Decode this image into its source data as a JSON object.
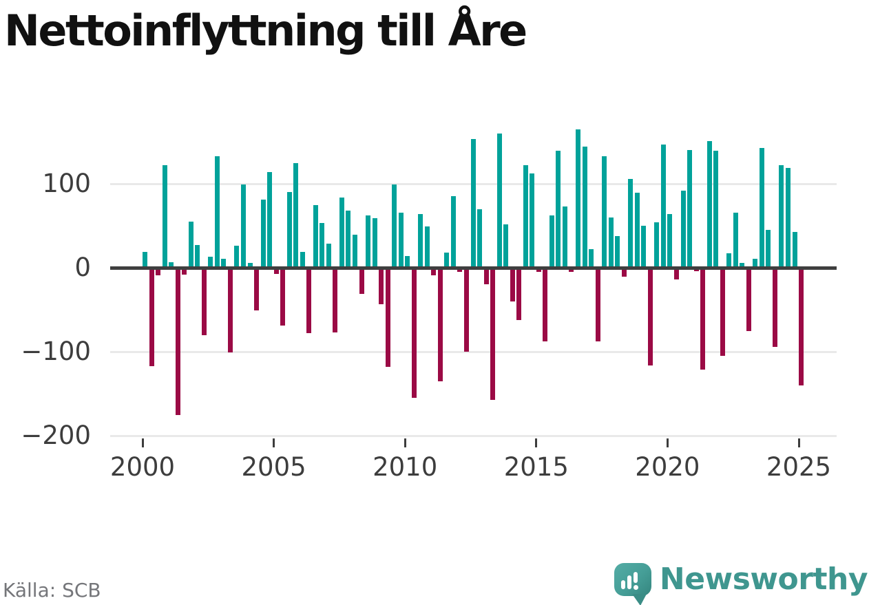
{
  "title": "Nettoinflyttning till Åre",
  "source": "Källa: SCB",
  "branding": {
    "name": "Newsworthy",
    "logo_icon": "speech-bubble-bar-chart-icon"
  },
  "colors": {
    "positive": "#00a29a",
    "negative": "#9b0a45",
    "zero_line": "#3f3f3f",
    "gridline": "#e9e9e9",
    "axis_text": "#3d3d3d",
    "title_text": "#111111",
    "source_text": "#75767a",
    "brand_teal": "#3f968f"
  },
  "chart_data": {
    "type": "bar",
    "title": "Nettoinflyttning till Åre",
    "x_start": "2000-Q1",
    "x_end": "2025-Q1",
    "frequency": "quarterly",
    "x_tick_labels": [
      "2000",
      "2005",
      "2010",
      "2015",
      "2020",
      "2025"
    ],
    "y_ticks": [
      100,
      0,
      -100,
      -200
    ],
    "y_tick_labels": [
      "100",
      "0",
      "−100",
      "−200"
    ],
    "ylim": [
      -200,
      180
    ],
    "grid": true,
    "legend": false,
    "series": [
      {
        "name": "Nettoinflyttning",
        "values": [
          19,
          -117,
          -9,
          122,
          7,
          -175,
          -8,
          55,
          27,
          -80,
          13,
          133,
          11,
          -101,
          26,
          99,
          6,
          -51,
          81,
          114,
          -7,
          -69,
          90,
          125,
          19,
          -78,
          75,
          53,
          29,
          -77,
          84,
          68,
          39,
          -31,
          62,
          59,
          -43,
          -118,
          99,
          66,
          14,
          -155,
          64,
          49,
          -9,
          -135,
          18,
          85,
          -5,
          -100,
          153,
          70,
          -20,
          -157,
          160,
          52,
          -40,
          -62,
          122,
          112,
          -5,
          -88,
          62,
          139,
          73,
          -5,
          165,
          144,
          22,
          -88,
          133,
          60,
          38,
          -11,
          106,
          89,
          50,
          -116,
          54,
          147,
          64,
          -14,
          92,
          140,
          -4,
          -121,
          151,
          139,
          -105,
          17,
          66,
          6,
          -75,
          11,
          143,
          45,
          -94,
          122,
          119,
          43,
          -140
        ]
      }
    ]
  }
}
